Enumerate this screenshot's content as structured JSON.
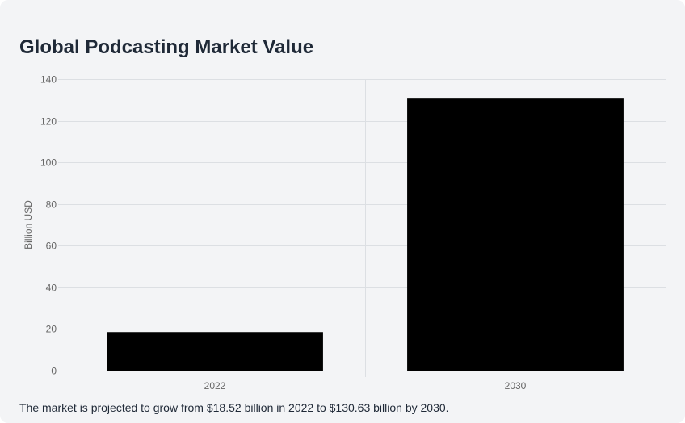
{
  "chart_data": {
    "type": "bar",
    "title": "Global Podcasting Market Value",
    "xlabel": "",
    "ylabel": "Billion USD",
    "categories": [
      "2022",
      "2030"
    ],
    "values": [
      18.52,
      130.63
    ],
    "ylim": [
      0,
      140
    ],
    "yticks": [
      0,
      20,
      40,
      60,
      80,
      100,
      120,
      140
    ],
    "grid": true,
    "legend": "none",
    "bar_color": "#000000"
  },
  "caption": "The market is projected to grow from $18.52 billion in 2022 to $130.63 billion by 2030."
}
